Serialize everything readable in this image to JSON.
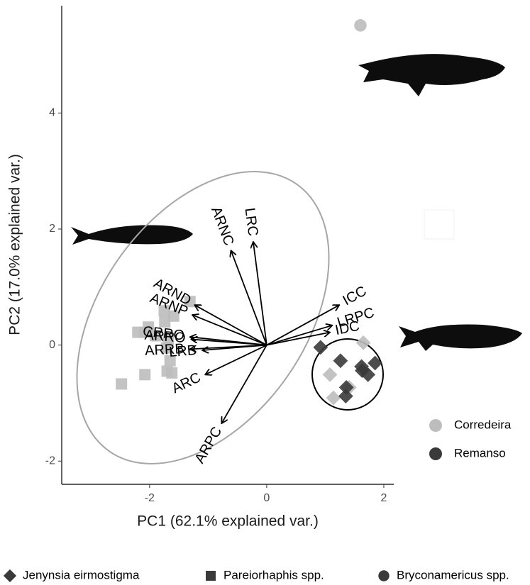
{
  "chart_data": {
    "type": "biplot",
    "x_label": "PC1 (62.1% explained var.)",
    "y_label": "PC2 (17.0% explained var.)",
    "xlim": [
      -3.5,
      2.17
    ],
    "ylim": [
      -2.4,
      5.85
    ],
    "xticks": [
      -2,
      0,
      2
    ],
    "yticks": [
      -2,
      0,
      2,
      4
    ],
    "series": [
      {
        "shape": "square",
        "color": "#bdbdbd",
        "x": [
          -1.31,
          -1.75,
          -1.59,
          -1.74,
          -2.02,
          -2.08,
          -2.2,
          -1.9,
          -1.68,
          -1.71,
          -1.65,
          -1.7,
          -1.62,
          -2.08,
          -2.48
        ],
        "values": [
          0.75,
          0.59,
          0.5,
          0.4,
          0.31,
          0.22,
          0.22,
          0.16,
          0.1,
          -0.05,
          -0.27,
          -0.45,
          -0.48,
          -0.51,
          -0.67
        ]
      },
      {
        "shape": "circle",
        "color": "#bdbdbd",
        "x": [
          1.6
        ],
        "values": [
          5.51
        ]
      },
      {
        "shape": "diamond",
        "color": "#bdbdbd",
        "x": [
          1.65,
          1.08,
          1.14,
          1.41
        ],
        "values": [
          0.04,
          -0.51,
          -0.91,
          -0.73
        ]
      },
      {
        "shape": "diamond",
        "color": "#3a3a3a",
        "x": [
          0.92,
          1.26,
          1.62,
          1.73,
          1.85,
          1.63,
          1.36,
          1.35
        ],
        "values": [
          -0.04,
          -0.27,
          -0.37,
          -0.51,
          -0.31,
          -0.44,
          -0.73,
          -0.88
        ]
      }
    ],
    "loadings": [
      {
        "name": "ARNC",
        "x": -0.61,
        "y": 1.63
      },
      {
        "name": "LRC",
        "x": -0.23,
        "y": 1.78
      },
      {
        "name": "ARND",
        "x": -1.23,
        "y": 0.69
      },
      {
        "name": "ARNP",
        "x": -1.27,
        "y": 0.52
      },
      {
        "name": "CRRO",
        "x": -1.31,
        "y": 0.14
      },
      {
        "name": "ARRO",
        "x": -1.29,
        "y": 0.1
      },
      {
        "name": "ARRB",
        "x": -1.31,
        "y": -0.07
      },
      {
        "name": "LRB",
        "x": -1.1,
        "y": -0.09
      },
      {
        "name": "ARC",
        "x": -1.05,
        "y": -0.51
      },
      {
        "name": "ARPC",
        "x": -0.77,
        "y": -1.35
      },
      {
        "name": "ICC",
        "x": 1.24,
        "y": 0.69
      },
      {
        "name": "LRPC",
        "x": 1.12,
        "y": 0.34
      },
      {
        "name": "IDC",
        "x": 1.08,
        "y": 0.22
      }
    ],
    "color_legend": [
      {
        "name": "Corredeira",
        "color": "#bdbdbd"
      },
      {
        "name": "Remanso",
        "color": "#3a3a3a"
      }
    ],
    "shape_legend": [
      {
        "name": "Jenynsia eirmostigma",
        "shape": "diamond"
      },
      {
        "name": "Pareiorhaphis spp.",
        "shape": "square"
      },
      {
        "name": "Bryconamericus spp.",
        "shape": "circle"
      }
    ]
  }
}
